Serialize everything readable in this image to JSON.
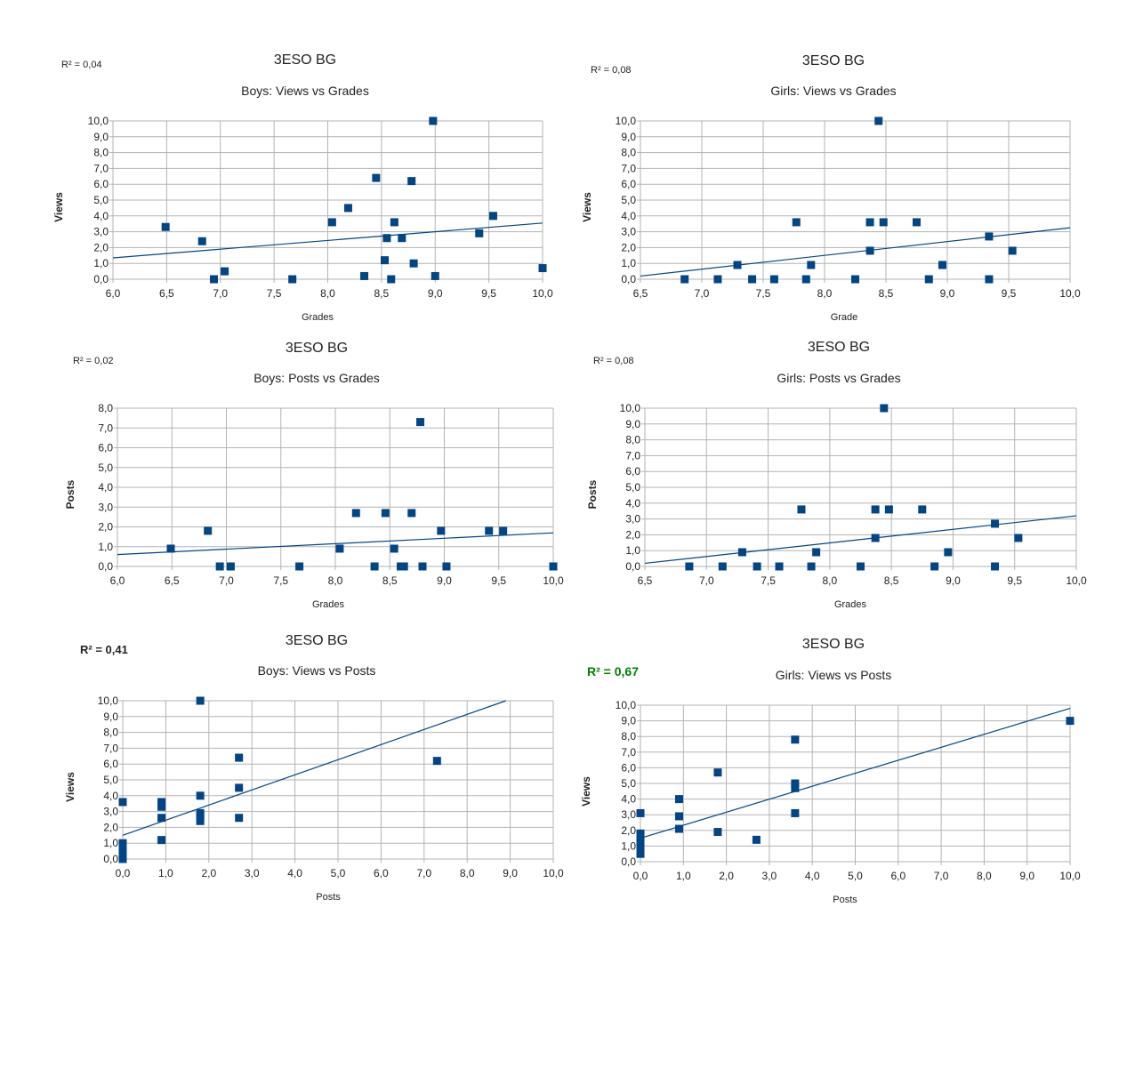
{
  "page": {
    "background": "#ffffff"
  },
  "style": {
    "marker_color": "#004586",
    "trend_color": "#004586",
    "grid_color": "#b3b3b3",
    "r2_highlight_color": "#008000"
  },
  "chart_data": [
    {
      "type": "scatter",
      "title": "3ESO BG",
      "subtitle": "Boys: Views vs Grades",
      "xlabel": "Grades",
      "ylabel": "Views",
      "r2_label": "R² = 0,04",
      "r2_style": "normal",
      "xlim": [
        6.0,
        10.0
      ],
      "ylim": [
        0.0,
        10.0
      ],
      "xticks": [
        "6,0",
        "6,5",
        "7,0",
        "7,5",
        "8,0",
        "8,5",
        "9,0",
        "9,5",
        "10,0"
      ],
      "yticks": [
        "0,0",
        "1,0",
        "2,0",
        "3,0",
        "4,0",
        "5,0",
        "6,0",
        "7,0",
        "8,0",
        "9,0",
        "10,0"
      ],
      "grid": true,
      "trendline": [
        [
          6.0,
          1.35
        ],
        [
          10.0,
          3.55
        ]
      ],
      "points": [
        [
          6.49,
          3.3
        ],
        [
          6.83,
          2.4
        ],
        [
          6.94,
          0.0
        ],
        [
          7.04,
          0.5
        ],
        [
          7.67,
          0.0
        ],
        [
          8.04,
          3.6
        ],
        [
          8.19,
          4.5
        ],
        [
          8.34,
          0.2
        ],
        [
          8.45,
          6.4
        ],
        [
          8.53,
          1.2
        ],
        [
          8.55,
          2.6
        ],
        [
          8.59,
          0.0
        ],
        [
          8.62,
          3.6
        ],
        [
          8.69,
          2.6
        ],
        [
          8.78,
          6.2
        ],
        [
          8.8,
          1.0
        ],
        [
          8.98,
          10.0
        ],
        [
          9.0,
          0.2
        ],
        [
          9.41,
          2.9
        ],
        [
          9.54,
          4.0
        ],
        [
          10.0,
          0.7
        ]
      ]
    },
    {
      "type": "scatter",
      "title": "3ESO BG",
      "subtitle": "Girls: Views vs Grades",
      "xlabel": "Grade",
      "ylabel": "Views",
      "r2_label": "R² = 0,08",
      "r2_style": "normal",
      "xlim": [
        6.5,
        10.0
      ],
      "ylim": [
        0.0,
        10.0
      ],
      "xticks": [
        "6,5",
        "7,0",
        "7,5",
        "8,0",
        "8,5",
        "9,0",
        "9,5",
        "10,0"
      ],
      "yticks": [
        "0,0",
        "1,0",
        "2,0",
        "3,0",
        "4,0",
        "5,0",
        "6,0",
        "7,0",
        "8,0",
        "9,0",
        "10,0"
      ],
      "grid": true,
      "trendline": [
        [
          6.5,
          0.2
        ],
        [
          10.0,
          3.25
        ]
      ],
      "points": [
        [
          6.86,
          0.0
        ],
        [
          7.13,
          0.0
        ],
        [
          7.29,
          0.9
        ],
        [
          7.41,
          0.0
        ],
        [
          7.59,
          0.0
        ],
        [
          7.77,
          3.6
        ],
        [
          7.85,
          0.0
        ],
        [
          7.89,
          0.9
        ],
        [
          8.25,
          0.0
        ],
        [
          8.37,
          1.8
        ],
        [
          8.37,
          3.6
        ],
        [
          8.44,
          10.0
        ],
        [
          8.48,
          3.6
        ],
        [
          8.75,
          3.6
        ],
        [
          8.85,
          0.0
        ],
        [
          8.96,
          0.9
        ],
        [
          9.34,
          0.0
        ],
        [
          9.34,
          2.7
        ],
        [
          9.53,
          1.8
        ]
      ]
    },
    {
      "type": "scatter",
      "title": "3ESO BG",
      "subtitle": "Boys: Posts vs Grades",
      "xlabel": "Grades",
      "ylabel": "Posts",
      "r2_label": "R² = 0,02",
      "r2_style": "normal",
      "xlim": [
        6.0,
        10.0
      ],
      "ylim": [
        0.0,
        8.0
      ],
      "xticks": [
        "6,0",
        "6,5",
        "7,0",
        "7,5",
        "8,0",
        "8,5",
        "9,0",
        "9,5",
        "10,0"
      ],
      "yticks": [
        "0,0",
        "1,0",
        "2,0",
        "3,0",
        "4,0",
        "5,0",
        "6,0",
        "7,0",
        "8,0"
      ],
      "grid": true,
      "trendline": [
        [
          6.0,
          0.6
        ],
        [
          10.0,
          1.7
        ]
      ],
      "points": [
        [
          6.49,
          0.9
        ],
        [
          6.83,
          1.8
        ],
        [
          6.94,
          0.0
        ],
        [
          7.04,
          0.0
        ],
        [
          7.67,
          0.0
        ],
        [
          8.04,
          0.9
        ],
        [
          8.19,
          2.7
        ],
        [
          8.36,
          0.0
        ],
        [
          8.46,
          2.7
        ],
        [
          8.54,
          0.9
        ],
        [
          8.6,
          0.0
        ],
        [
          8.63,
          0.0
        ],
        [
          8.7,
          2.7
        ],
        [
          8.78,
          7.3
        ],
        [
          8.8,
          0.0
        ],
        [
          8.97,
          1.8
        ],
        [
          9.02,
          0.0
        ],
        [
          9.41,
          1.8
        ],
        [
          9.54,
          1.8
        ],
        [
          10.0,
          0.0
        ]
      ]
    },
    {
      "type": "scatter",
      "title": "3ESO BG",
      "subtitle": "Girls: Posts vs Grades",
      "xlabel": "Grades",
      "ylabel": "Posts",
      "r2_label": "R² = 0,08",
      "r2_style": "normal",
      "xlim": [
        6.5,
        10.0
      ],
      "ylim": [
        0.0,
        10.0
      ],
      "xticks": [
        "6,5",
        "7,0",
        "7,5",
        "8,0",
        "8,5",
        "9,0",
        "9,5",
        "10,0"
      ],
      "yticks": [
        "0,0",
        "1,0",
        "2,0",
        "3,0",
        "4,0",
        "5,0",
        "6,0",
        "7,0",
        "8,0",
        "9,0",
        "10,0"
      ],
      "grid": true,
      "trendline": [
        [
          6.5,
          0.2
        ],
        [
          10.0,
          3.2
        ]
      ],
      "points": [
        [
          6.86,
          0.0
        ],
        [
          7.13,
          0.0
        ],
        [
          7.29,
          0.9
        ],
        [
          7.41,
          0.0
        ],
        [
          7.59,
          0.0
        ],
        [
          7.77,
          3.6
        ],
        [
          7.85,
          0.0
        ],
        [
          7.89,
          0.9
        ],
        [
          8.25,
          0.0
        ],
        [
          8.37,
          1.8
        ],
        [
          8.37,
          3.6
        ],
        [
          8.44,
          10.0
        ],
        [
          8.48,
          3.6
        ],
        [
          8.75,
          3.6
        ],
        [
          8.85,
          0.0
        ],
        [
          8.96,
          0.9
        ],
        [
          9.34,
          0.0
        ],
        [
          9.34,
          2.7
        ],
        [
          9.53,
          1.8
        ]
      ]
    },
    {
      "type": "scatter",
      "title": "3ESO BG",
      "subtitle": "Boys: Views vs Posts",
      "xlabel": "Posts",
      "ylabel": "Views",
      "r2_label": "R² = 0,41",
      "r2_style": "bold",
      "xlim": [
        0.0,
        10.0
      ],
      "ylim": [
        0.0,
        10.0
      ],
      "xticks": [
        "0,0",
        "1,0",
        "2,0",
        "3,0",
        "4,0",
        "5,0",
        "6,0",
        "7,0",
        "8,0",
        "9,0",
        "10,0"
      ],
      "yticks": [
        "0,0",
        "1,0",
        "2,0",
        "3,0",
        "4,0",
        "5,0",
        "6,0",
        "7,0",
        "8,0",
        "9,0",
        "10,0"
      ],
      "grid": true,
      "trendline": [
        [
          0.0,
          1.5
        ],
        [
          8.9,
          10.0
        ]
      ],
      "points": [
        [
          0.0,
          0.0
        ],
        [
          0.0,
          0.2
        ],
        [
          0.0,
          0.4
        ],
        [
          0.0,
          0.5
        ],
        [
          0.0,
          0.7
        ],
        [
          0.0,
          1.0
        ],
        [
          0.0,
          3.6
        ],
        [
          0.9,
          1.2
        ],
        [
          0.9,
          2.6
        ],
        [
          0.9,
          3.3
        ],
        [
          0.9,
          3.6
        ],
        [
          1.8,
          2.4
        ],
        [
          1.8,
          2.7
        ],
        [
          1.8,
          2.9
        ],
        [
          1.8,
          4.0
        ],
        [
          1.8,
          10.0
        ],
        [
          2.7,
          2.6
        ],
        [
          2.7,
          4.5
        ],
        [
          2.7,
          6.4
        ],
        [
          7.3,
          6.2
        ]
      ]
    },
    {
      "type": "scatter",
      "title": "3ESO BG",
      "subtitle": "Girls: Views vs Posts",
      "xlabel": "Posts",
      "ylabel": "Views",
      "r2_label": "R² = 0,67",
      "r2_style": "highlight",
      "xlim": [
        0.0,
        10.0
      ],
      "ylim": [
        0.0,
        10.0
      ],
      "xticks": [
        "0,0",
        "1,0",
        "2,0",
        "3,0",
        "4,0",
        "5,0",
        "6,0",
        "7,0",
        "8,0",
        "9,0",
        "10,0"
      ],
      "yticks": [
        "0,0",
        "1,0",
        "2,0",
        "3,0",
        "4,0",
        "5,0",
        "6,0",
        "7,0",
        "8,0",
        "9,0",
        "10,0"
      ],
      "grid": true,
      "trendline": [
        [
          0.0,
          1.5
        ],
        [
          10.0,
          9.8
        ]
      ],
      "points": [
        [
          0.0,
          0.5
        ],
        [
          0.0,
          0.9
        ],
        [
          0.0,
          1.2
        ],
        [
          0.0,
          1.5
        ],
        [
          0.0,
          1.8
        ],
        [
          0.0,
          3.1
        ],
        [
          0.9,
          2.1
        ],
        [
          0.9,
          2.9
        ],
        [
          0.9,
          4.0
        ],
        [
          1.8,
          1.9
        ],
        [
          1.8,
          5.7
        ],
        [
          2.7,
          1.4
        ],
        [
          3.6,
          3.1
        ],
        [
          3.6,
          4.7
        ],
        [
          3.6,
          5.0
        ],
        [
          3.6,
          7.8
        ],
        [
          10.0,
          9.0
        ]
      ]
    }
  ]
}
